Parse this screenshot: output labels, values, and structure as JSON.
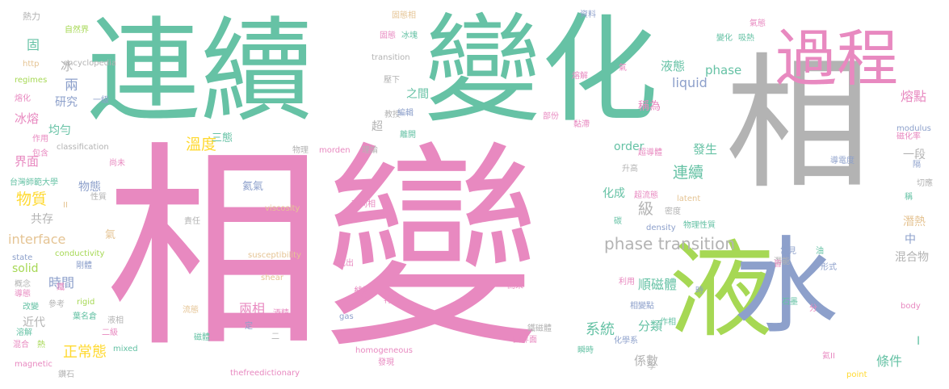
{
  "colors": {
    "pink": "#e889c0",
    "teal": "#66c2a5",
    "gray": "#b3b3b3",
    "green": "#a6d854",
    "blue": "#8da0cb",
    "orange": "#fc8d62",
    "yellow": "#ffd92f",
    "tan": "#e5c494"
  },
  "words": [
    {
      "text": "相變",
      "color": "pink"
    },
    {
      "text": "連續",
      "color": "teal"
    },
    {
      "text": "變化",
      "color": "teal"
    },
    {
      "text": "相",
      "color": "gray"
    },
    {
      "text": "過程",
      "color": "pink"
    },
    {
      "text": "液",
      "color": "green"
    },
    {
      "text": "水",
      "color": "blue"
    },
    {
      "text": "phase transition",
      "color": "gray"
    },
    {
      "text": "發生",
      "color": "teal"
    },
    {
      "text": "連續",
      "color": "teal"
    },
    {
      "text": "liquid",
      "color": "blue"
    },
    {
      "text": "液態",
      "color": "teal"
    },
    {
      "text": "phase",
      "color": "teal"
    },
    {
      "text": "interface",
      "color": "tan"
    },
    {
      "text": "物質",
      "color": "yellow"
    },
    {
      "text": "溫度",
      "color": "yellow"
    },
    {
      "text": "系統",
      "color": "teal"
    },
    {
      "text": "正常態",
      "color": "yellow"
    },
    {
      "text": "熔點",
      "color": "pink"
    },
    {
      "text": "兩相",
      "color": "pink"
    },
    {
      "text": "級",
      "color": "gray"
    },
    {
      "text": "順磁體",
      "color": "teal"
    },
    {
      "text": "分類",
      "color": "teal"
    },
    {
      "text": "係數",
      "color": "gray"
    },
    {
      "text": "條件",
      "color": "teal"
    },
    {
      "text": "變",
      "color": "pink"
    },
    {
      "text": "時間",
      "color": "blue"
    },
    {
      "text": "兩",
      "color": "blue"
    },
    {
      "text": "冰",
      "color": "gray"
    },
    {
      "text": "固",
      "color": "teal"
    },
    {
      "text": "研究",
      "color": "blue"
    },
    {
      "text": "冰熔",
      "color": "pink"
    },
    {
      "text": "均勻",
      "color": "teal"
    },
    {
      "text": "界面",
      "color": "pink"
    },
    {
      "text": "共存",
      "color": "gray"
    },
    {
      "text": "solid",
      "color": "green"
    },
    {
      "text": "order",
      "color": "teal"
    },
    {
      "text": "化成",
      "color": "teal"
    },
    {
      "text": "一段",
      "color": "gray"
    },
    {
      "text": "潛熱",
      "color": "tan"
    },
    {
      "text": "混合物",
      "color": "gray"
    },
    {
      "text": "中",
      "color": "blue"
    },
    {
      "text": "氣",
      "color": "tan"
    },
    {
      "text": "近代",
      "color": "gray"
    },
    {
      "text": "之間",
      "color": "teal"
    },
    {
      "text": "稱為",
      "color": "pink"
    },
    {
      "text": "超",
      "color": "gray"
    },
    {
      "text": "三態",
      "color": "teal"
    },
    {
      "text": "物態",
      "color": "blue"
    },
    {
      "text": "氦氣",
      "color": "blue"
    },
    {
      "text": "熱力",
      "color": "gray"
    },
    {
      "text": "自然界",
      "color": "green"
    },
    {
      "text": "encyclopedia",
      "color": "gray"
    },
    {
      "text": "http",
      "color": "tan"
    },
    {
      "text": "regimes",
      "color": "green"
    },
    {
      "text": "熔化",
      "color": "pink"
    },
    {
      "text": "一級",
      "color": "blue"
    },
    {
      "text": "作用",
      "color": "pink"
    },
    {
      "text": "classification",
      "color": "gray"
    },
    {
      "text": "包含",
      "color": "pink"
    },
    {
      "text": "台灣師範大學",
      "color": "teal"
    },
    {
      "text": "性質",
      "color": "gray"
    },
    {
      "text": "II",
      "color": "tan"
    },
    {
      "text": "conductivity",
      "color": "green"
    },
    {
      "text": "state",
      "color": "blue"
    },
    {
      "text": "剛體",
      "color": "blue"
    },
    {
      "text": "概念",
      "color": "gray"
    },
    {
      "text": "鐵",
      "color": "pink"
    },
    {
      "text": "導態",
      "color": "pink"
    },
    {
      "text": "改變",
      "color": "teal"
    },
    {
      "text": "參考",
      "color": "gray"
    },
    {
      "text": "葉名倉",
      "color": "teal"
    },
    {
      "text": "rigid",
      "color": "green"
    },
    {
      "text": "液相",
      "color": "gray"
    },
    {
      "text": "溶解",
      "color": "teal"
    },
    {
      "text": "二級",
      "color": "pink"
    },
    {
      "text": "混合",
      "color": "pink"
    },
    {
      "text": "熱",
      "color": "green"
    },
    {
      "text": "mixed",
      "color": "teal"
    },
    {
      "text": "magnetic",
      "color": "pink"
    },
    {
      "text": "鑽石",
      "color": "gray"
    },
    {
      "text": "尚未",
      "color": "pink"
    },
    {
      "text": "固態相",
      "color": "tan"
    },
    {
      "text": "固態",
      "color": "pink"
    },
    {
      "text": "冰塊",
      "color": "teal"
    },
    {
      "text": "transition",
      "color": "gray"
    },
    {
      "text": "壓下",
      "color": "gray"
    },
    {
      "text": "教授",
      "color": "gray"
    },
    {
      "text": "編輯",
      "color": "blue"
    },
    {
      "text": "離開",
      "color": "teal"
    },
    {
      "text": "資料",
      "color": "blue"
    },
    {
      "text": "氣態",
      "color": "pink"
    },
    {
      "text": "變化",
      "color": "teal"
    },
    {
      "text": "吸熱",
      "color": "teal"
    },
    {
      "text": "氣",
      "color": "pink"
    },
    {
      "text": "熔解",
      "color": "pink"
    },
    {
      "text": "部份",
      "color": "pink"
    },
    {
      "text": "黏滯",
      "color": "pink"
    },
    {
      "text": "物理",
      "color": "gray"
    },
    {
      "text": "morden",
      "color": "pink"
    },
    {
      "text": "理論",
      "color": "gray"
    },
    {
      "text": "超導體",
      "color": "pink"
    },
    {
      "text": "升高",
      "color": "gray"
    },
    {
      "text": "超流態",
      "color": "pink"
    },
    {
      "text": "latent",
      "color": "tan"
    },
    {
      "text": "密度",
      "color": "gray"
    },
    {
      "text": "density",
      "color": "blue"
    },
    {
      "text": "物理性質",
      "color": "teal"
    },
    {
      "text": "碳",
      "color": "teal"
    },
    {
      "text": "viscosity",
      "color": "tan"
    },
    {
      "text": "不同相",
      "color": "pink"
    },
    {
      "text": "責任",
      "color": "gray"
    },
    {
      "text": "susceptibility",
      "color": "tan"
    },
    {
      "text": "找出",
      "color": "pink"
    },
    {
      "text": "shear",
      "color": "tan"
    },
    {
      "text": "開來",
      "color": "pink"
    },
    {
      "text": "特徵",
      "color": "pink"
    },
    {
      "text": "流態",
      "color": "tan"
    },
    {
      "text": "酒精",
      "color": "pink"
    },
    {
      "text": "gas",
      "color": "blue"
    },
    {
      "text": "定",
      "color": "blue"
    },
    {
      "text": "二",
      "color": "gray"
    },
    {
      "text": "磁體",
      "color": "teal"
    },
    {
      "text": "homogeneous",
      "color": "pink"
    },
    {
      "text": "發現",
      "color": "pink"
    },
    {
      "text": "鐵磁體",
      "color": "gray"
    },
    {
      "text": "固界面",
      "color": "pink"
    },
    {
      "text": "瞬時",
      "color": "teal"
    },
    {
      "text": "化學系",
      "color": "blue"
    },
    {
      "text": "thefreedictionary",
      "color": "pink"
    },
    {
      "text": "學",
      "color": "gray"
    },
    {
      "text": "作相",
      "color": "teal"
    },
    {
      "text": "利用",
      "color": "pink"
    },
    {
      "text": "相變點",
      "color": "blue"
    },
    {
      "text": "潛能",
      "color": "gray"
    },
    {
      "text": "皆",
      "color": "pink"
    },
    {
      "text": "常見",
      "color": "blue"
    },
    {
      "text": "時",
      "color": "blue"
    },
    {
      "text": "石墨",
      "color": "teal"
    },
    {
      "text": "分",
      "color": "pink"
    },
    {
      "text": "形式",
      "color": "blue"
    },
    {
      "text": "氦II",
      "color": "pink"
    },
    {
      "text": "point",
      "color": "yellow"
    },
    {
      "text": "I",
      "color": "teal"
    },
    {
      "text": "body",
      "color": "pink"
    },
    {
      "text": "modulus",
      "color": "blue"
    },
    {
      "text": "磁化率",
      "color": "pink"
    },
    {
      "text": "導電度",
      "color": "blue"
    },
    {
      "text": "切應",
      "color": "gray"
    },
    {
      "text": "隔",
      "color": "blue"
    },
    {
      "text": "稱",
      "color": "teal"
    },
    {
      "text": "油",
      "color": "teal"
    }
  ]
}
